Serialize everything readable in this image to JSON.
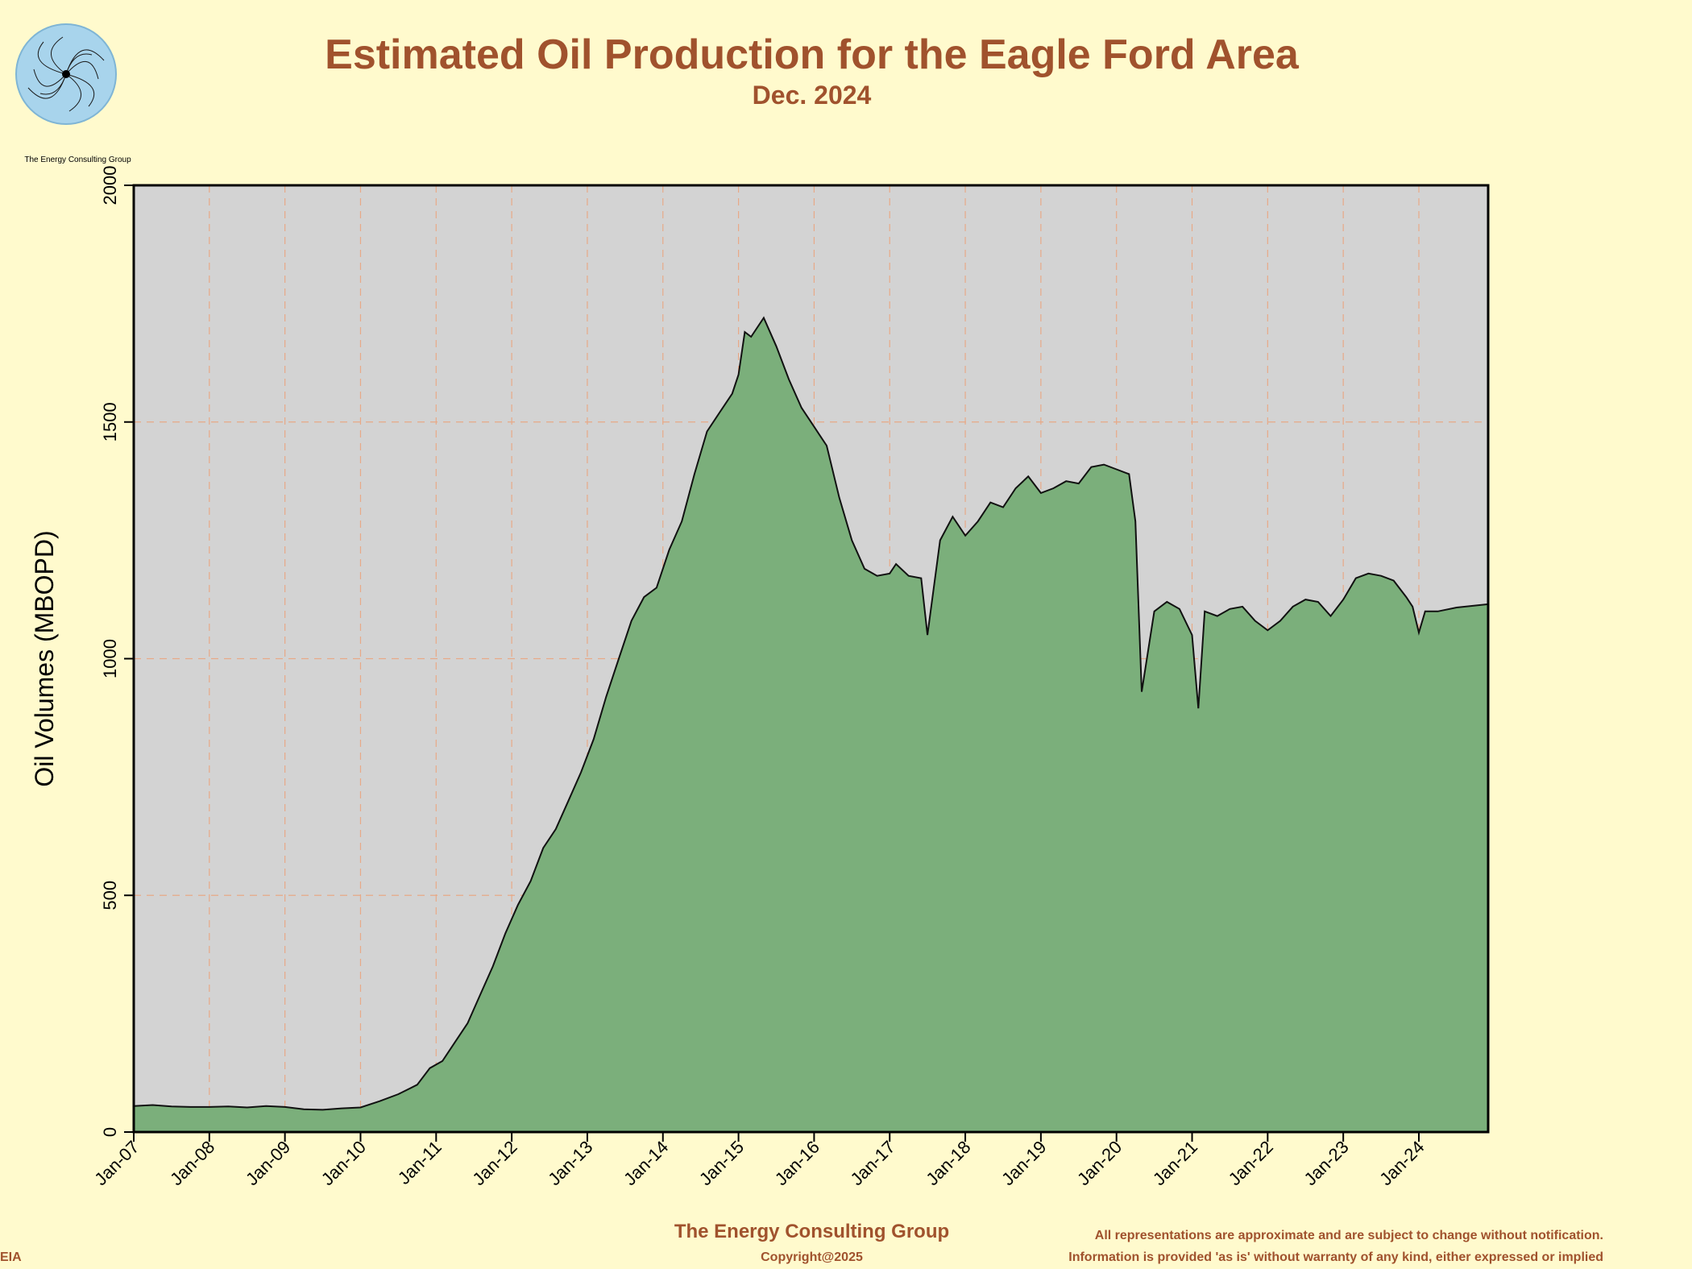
{
  "header": {
    "title": "Estimated Oil Production for the Eagle Ford Area",
    "subtitle": "Dec. 2024"
  },
  "logo": {
    "caption": "The Energy Consulting Group",
    "icon": "spiral-logo-icon"
  },
  "footer": {
    "brand": "The Energy Consulting Group",
    "copyright": "Copyright@2025",
    "disclaimer_1": "All representations are approximate and are subject to change without notification.",
    "disclaimer_2": "Information is provided 'as is' without warranty of any kind, either expressed or implied",
    "source": "EIA"
  },
  "colors": {
    "background": "#FFFACD",
    "plot_background": "#D3D3D3",
    "fill": "#7BAF7B",
    "title": "#A0522D",
    "grid": "#E8A987"
  },
  "chart_data": {
    "type": "area",
    "title": "Estimated Oil Production for the Eagle Ford Area",
    "subtitle": "Dec. 2024",
    "xlabel": "",
    "ylabel": "Oil Volumes (MBOPD)",
    "ylim": [
      0,
      2000
    ],
    "xlim": [
      "2007-01",
      "2024-12"
    ],
    "grid": true,
    "x_ticks": [
      "Jan-07",
      "Jan-08",
      "Jan-09",
      "Jan-10",
      "Jan-11",
      "Jan-12",
      "Jan-13",
      "Jan-14",
      "Jan-15",
      "Jan-16",
      "Jan-17",
      "Jan-18",
      "Jan-19",
      "Jan-20",
      "Jan-21",
      "Jan-22",
      "Jan-23",
      "Jan-24"
    ],
    "y_ticks": [
      0,
      500,
      1000,
      1500,
      2000
    ],
    "series": [
      {
        "points": [
          [
            "2007-01",
            55
          ],
          [
            "2007-04",
            57
          ],
          [
            "2007-07",
            54
          ],
          [
            "2007-10",
            53
          ],
          [
            "2008-01",
            53
          ],
          [
            "2008-04",
            54
          ],
          [
            "2008-07",
            52
          ],
          [
            "2008-10",
            55
          ],
          [
            "2009-01",
            53
          ],
          [
            "2009-04",
            48
          ],
          [
            "2009-07",
            47
          ],
          [
            "2009-10",
            50
          ],
          [
            "2010-01",
            52
          ],
          [
            "2010-04",
            65
          ],
          [
            "2010-07",
            80
          ],
          [
            "2010-10",
            100
          ],
          [
            "2010-12",
            135
          ],
          [
            "2011-02",
            150
          ],
          [
            "2011-04",
            190
          ],
          [
            "2011-06",
            230
          ],
          [
            "2011-08",
            290
          ],
          [
            "2011-10",
            350
          ],
          [
            "2011-12",
            420
          ],
          [
            "2012-02",
            480
          ],
          [
            "2012-04",
            530
          ],
          [
            "2012-06",
            600
          ],
          [
            "2012-08",
            640
          ],
          [
            "2012-10",
            700
          ],
          [
            "2012-12",
            760
          ],
          [
            "2013-02",
            830
          ],
          [
            "2013-04",
            920
          ],
          [
            "2013-06",
            1000
          ],
          [
            "2013-08",
            1080
          ],
          [
            "2013-10",
            1130
          ],
          [
            "2013-12",
            1150
          ],
          [
            "2014-02",
            1230
          ],
          [
            "2014-04",
            1290
          ],
          [
            "2014-06",
            1390
          ],
          [
            "2014-08",
            1480
          ],
          [
            "2014-10",
            1520
          ],
          [
            "2014-12",
            1560
          ],
          [
            "2015-01",
            1600
          ],
          [
            "2015-02",
            1690
          ],
          [
            "2015-03",
            1680
          ],
          [
            "2015-05",
            1720
          ],
          [
            "2015-07",
            1660
          ],
          [
            "2015-09",
            1590
          ],
          [
            "2015-11",
            1530
          ],
          [
            "2016-01",
            1490
          ],
          [
            "2016-03",
            1450
          ],
          [
            "2016-05",
            1340
          ],
          [
            "2016-07",
            1250
          ],
          [
            "2016-09",
            1190
          ],
          [
            "2016-11",
            1175
          ],
          [
            "2017-01",
            1180
          ],
          [
            "2017-02",
            1200
          ],
          [
            "2017-04",
            1175
          ],
          [
            "2017-06",
            1170
          ],
          [
            "2017-07",
            1050
          ],
          [
            "2017-09",
            1250
          ],
          [
            "2017-11",
            1300
          ],
          [
            "2018-01",
            1260
          ],
          [
            "2018-03",
            1290
          ],
          [
            "2018-05",
            1330
          ],
          [
            "2018-07",
            1320
          ],
          [
            "2018-09",
            1360
          ],
          [
            "2018-11",
            1385
          ],
          [
            "2019-01",
            1350
          ],
          [
            "2019-03",
            1360
          ],
          [
            "2019-05",
            1375
          ],
          [
            "2019-07",
            1370
          ],
          [
            "2019-09",
            1405
          ],
          [
            "2019-11",
            1410
          ],
          [
            "2020-01",
            1400
          ],
          [
            "2020-03",
            1390
          ],
          [
            "2020-04",
            1290
          ],
          [
            "2020-05",
            930
          ],
          [
            "2020-07",
            1100
          ],
          [
            "2020-09",
            1120
          ],
          [
            "2020-11",
            1105
          ],
          [
            "2021-01",
            1050
          ],
          [
            "2021-02",
            895
          ],
          [
            "2021-03",
            1100
          ],
          [
            "2021-05",
            1090
          ],
          [
            "2021-07",
            1105
          ],
          [
            "2021-09",
            1110
          ],
          [
            "2021-11",
            1080
          ],
          [
            "2022-01",
            1060
          ],
          [
            "2022-03",
            1080
          ],
          [
            "2022-05",
            1110
          ],
          [
            "2022-07",
            1125
          ],
          [
            "2022-09",
            1120
          ],
          [
            "2022-11",
            1090
          ],
          [
            "2023-01",
            1125
          ],
          [
            "2023-03",
            1170
          ],
          [
            "2023-05",
            1180
          ],
          [
            "2023-07",
            1175
          ],
          [
            "2023-09",
            1165
          ],
          [
            "2023-11",
            1130
          ],
          [
            "2023-12",
            1110
          ],
          [
            "2024-01",
            1055
          ],
          [
            "2024-02",
            1100
          ],
          [
            "2024-04",
            1100
          ],
          [
            "2024-07",
            1108
          ],
          [
            "2024-12",
            1115
          ]
        ]
      }
    ]
  }
}
